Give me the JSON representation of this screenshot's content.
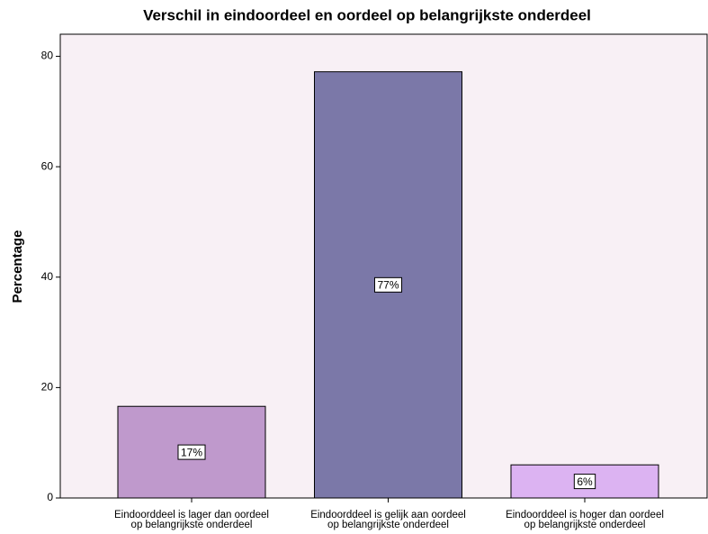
{
  "chart_data": {
    "type": "bar",
    "title": "Verschil in eindoordeel en oordeel op belangrijkste onderdeel",
    "y_label": "Percentage",
    "categories": [
      [
        "Eindoorddeel is lager dan oordeel",
        "op belangrijkste onderdeel"
      ],
      [
        "Eindoorddeel is gelijk aan oordeel",
        "op belangrijkste onderdeel"
      ],
      [
        "Eindoorddeel is hoger dan oordeel",
        "op belangrijkste onderdeel"
      ]
    ],
    "values": [
      16.6,
      77.2,
      6.0
    ],
    "value_labels": [
      "17%",
      "77%",
      "6%"
    ],
    "colors": [
      "#bf99cc",
      "#7b78a8",
      "#dcb3f2"
    ],
    "ylim": [
      0,
      84
    ],
    "yticks": [
      0,
      20,
      40,
      60,
      80
    ],
    "grid": false
  }
}
